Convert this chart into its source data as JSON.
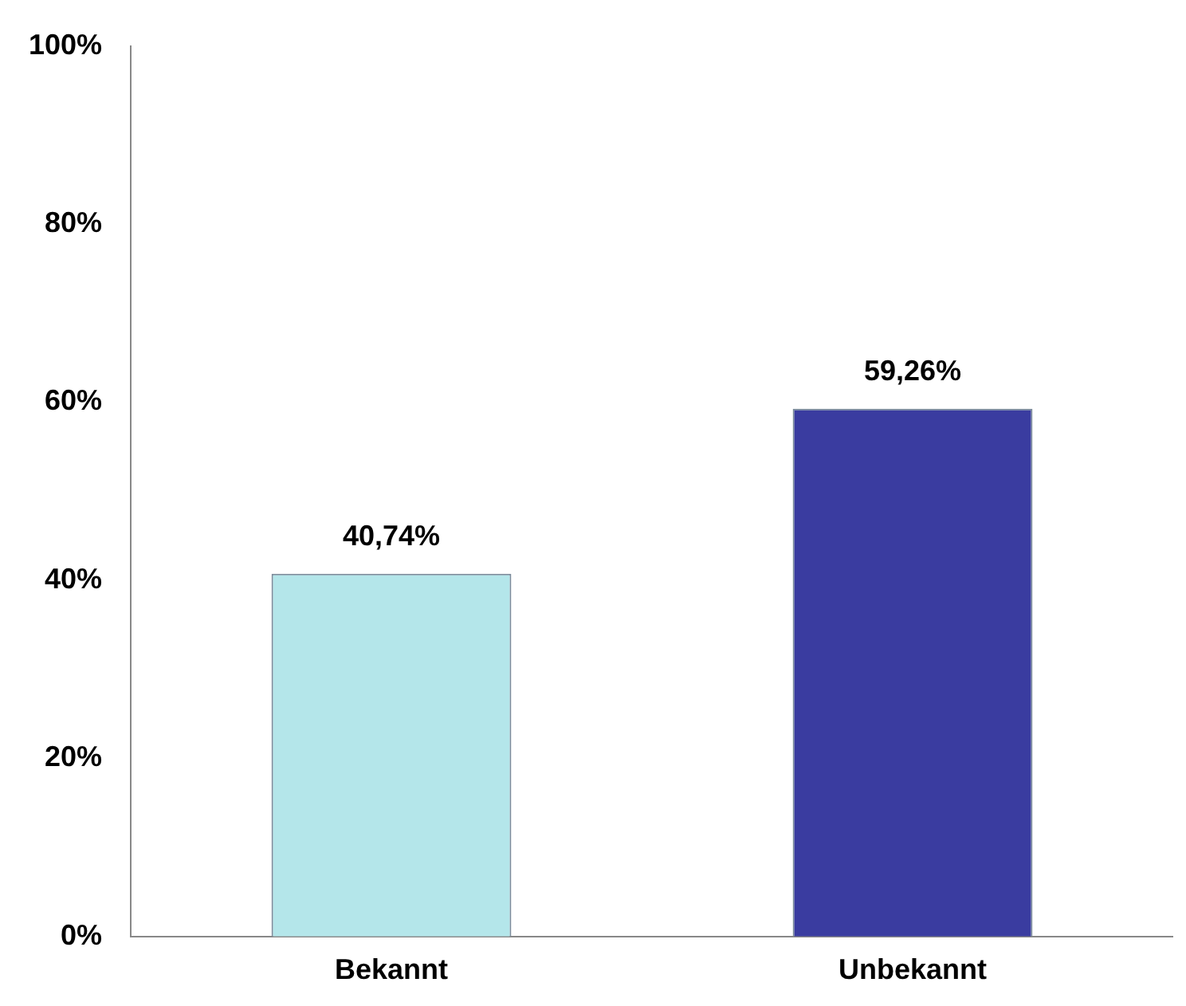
{
  "chart_data": {
    "type": "bar",
    "categories": [
      "Bekannt",
      "Unbekannt"
    ],
    "values": [
      40.74,
      59.26
    ],
    "colors": [
      "#b4e6ea",
      "#3a3ca0"
    ],
    "value_labels": [
      "40,74%",
      "59,26%"
    ],
    "ylim": [
      0,
      100
    ],
    "yticks": [
      {
        "value": 0,
        "label": "0%"
      },
      {
        "value": 20,
        "label": "20%"
      },
      {
        "value": 40,
        "label": "40%"
      },
      {
        "value": 60,
        "label": "60%"
      },
      {
        "value": 80,
        "label": "80%"
      },
      {
        "value": 100,
        "label": "100%"
      }
    ],
    "grid": false,
    "legend": false
  }
}
